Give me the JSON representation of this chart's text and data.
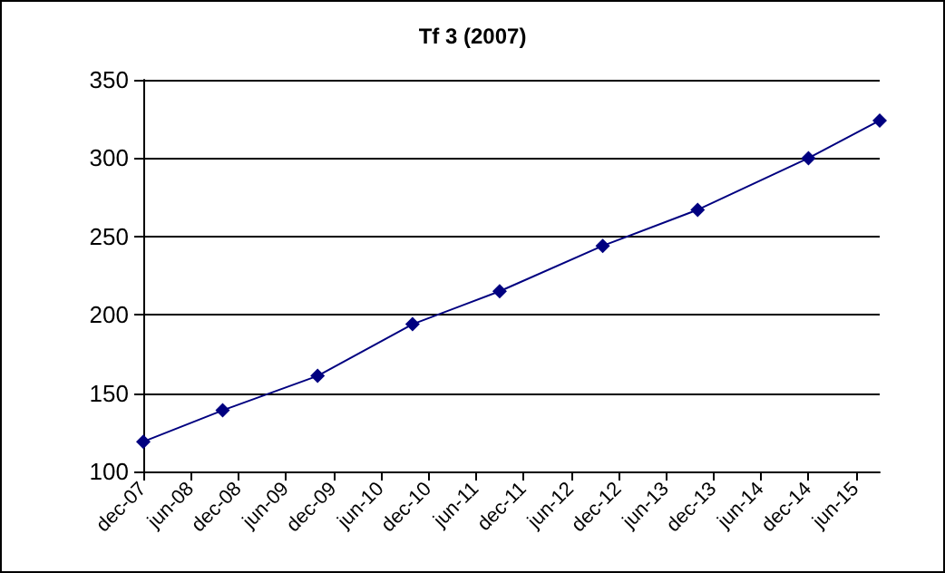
{
  "chart_data": {
    "type": "line",
    "title": "Tf 3 (2007)",
    "x": [
      "2007-12",
      "2008-10",
      "2009-10",
      "2010-10",
      "2011-09",
      "2012-10",
      "2013-10",
      "2014-12",
      "2015-09"
    ],
    "series": [
      {
        "color": "#000080",
        "values": [
          119,
          139,
          161,
          194,
          215,
          244,
          267,
          300,
          324
        ]
      }
    ],
    "xlim": [
      "2007-12",
      "2015-09"
    ],
    "xticks": [
      {
        "value": "2007-12",
        "label": "dec-07"
      },
      {
        "value": "2008-06",
        "label": "jun-08"
      },
      {
        "value": "2008-12",
        "label": "dec-08"
      },
      {
        "value": "2009-06",
        "label": "jun-09"
      },
      {
        "value": "2009-12",
        "label": "dec-09"
      },
      {
        "value": "2010-06",
        "label": "jun-10"
      },
      {
        "value": "2010-12",
        "label": "dec-10"
      },
      {
        "value": "2011-06",
        "label": "jun-11"
      },
      {
        "value": "2011-12",
        "label": "dec-11"
      },
      {
        "value": "2012-06",
        "label": "jun-12"
      },
      {
        "value": "2012-12",
        "label": "dec-12"
      },
      {
        "value": "2013-06",
        "label": "jun-13"
      },
      {
        "value": "2013-12",
        "label": "dec-13"
      },
      {
        "value": "2014-06",
        "label": "jun-14"
      },
      {
        "value": "2014-12",
        "label": "dec-14"
      },
      {
        "value": "2015-06",
        "label": "jun-15"
      }
    ],
    "ylim": [
      100,
      350
    ],
    "yticks": [
      100,
      150,
      200,
      250,
      300,
      350
    ],
    "grid": "y",
    "marker": "diamond",
    "line_style": "solid"
  }
}
